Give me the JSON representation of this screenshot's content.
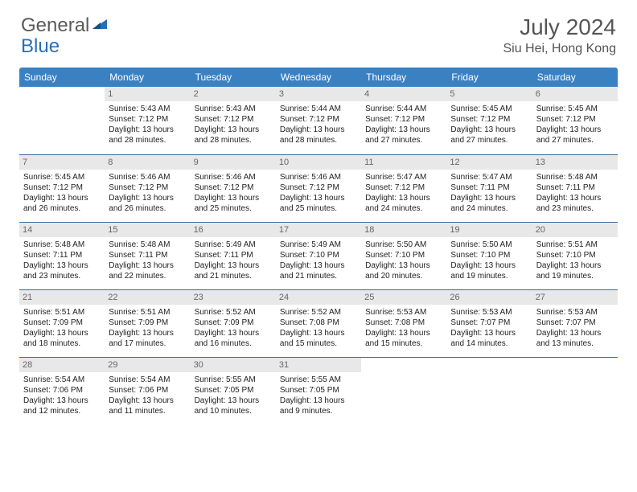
{
  "logo": {
    "part1": "General",
    "part2": "Blue"
  },
  "title": {
    "month": "July 2024",
    "location": "Siu Hei, Hong Kong"
  },
  "colors": {
    "header_bg": "#3a81c4",
    "header_text": "#ffffff",
    "daynum_bg": "#e8e8e8",
    "border": "#3a6a9a",
    "logo_blue": "#2a6fb5"
  },
  "weekdays": [
    "Sunday",
    "Monday",
    "Tuesday",
    "Wednesday",
    "Thursday",
    "Friday",
    "Saturday"
  ],
  "weeks": [
    [
      {
        "blank": true
      },
      {
        "day": "1",
        "sunrise": "Sunrise: 5:43 AM",
        "sunset": "Sunset: 7:12 PM",
        "daylight": "Daylight: 13 hours and 28 minutes."
      },
      {
        "day": "2",
        "sunrise": "Sunrise: 5:43 AM",
        "sunset": "Sunset: 7:12 PM",
        "daylight": "Daylight: 13 hours and 28 minutes."
      },
      {
        "day": "3",
        "sunrise": "Sunrise: 5:44 AM",
        "sunset": "Sunset: 7:12 PM",
        "daylight": "Daylight: 13 hours and 28 minutes."
      },
      {
        "day": "4",
        "sunrise": "Sunrise: 5:44 AM",
        "sunset": "Sunset: 7:12 PM",
        "daylight": "Daylight: 13 hours and 27 minutes."
      },
      {
        "day": "5",
        "sunrise": "Sunrise: 5:45 AM",
        "sunset": "Sunset: 7:12 PM",
        "daylight": "Daylight: 13 hours and 27 minutes."
      },
      {
        "day": "6",
        "sunrise": "Sunrise: 5:45 AM",
        "sunset": "Sunset: 7:12 PM",
        "daylight": "Daylight: 13 hours and 27 minutes."
      }
    ],
    [
      {
        "day": "7",
        "sunrise": "Sunrise: 5:45 AM",
        "sunset": "Sunset: 7:12 PM",
        "daylight": "Daylight: 13 hours and 26 minutes."
      },
      {
        "day": "8",
        "sunrise": "Sunrise: 5:46 AM",
        "sunset": "Sunset: 7:12 PM",
        "daylight": "Daylight: 13 hours and 26 minutes."
      },
      {
        "day": "9",
        "sunrise": "Sunrise: 5:46 AM",
        "sunset": "Sunset: 7:12 PM",
        "daylight": "Daylight: 13 hours and 25 minutes."
      },
      {
        "day": "10",
        "sunrise": "Sunrise: 5:46 AM",
        "sunset": "Sunset: 7:12 PM",
        "daylight": "Daylight: 13 hours and 25 minutes."
      },
      {
        "day": "11",
        "sunrise": "Sunrise: 5:47 AM",
        "sunset": "Sunset: 7:12 PM",
        "daylight": "Daylight: 13 hours and 24 minutes."
      },
      {
        "day": "12",
        "sunrise": "Sunrise: 5:47 AM",
        "sunset": "Sunset: 7:11 PM",
        "daylight": "Daylight: 13 hours and 24 minutes."
      },
      {
        "day": "13",
        "sunrise": "Sunrise: 5:48 AM",
        "sunset": "Sunset: 7:11 PM",
        "daylight": "Daylight: 13 hours and 23 minutes."
      }
    ],
    [
      {
        "day": "14",
        "sunrise": "Sunrise: 5:48 AM",
        "sunset": "Sunset: 7:11 PM",
        "daylight": "Daylight: 13 hours and 23 minutes."
      },
      {
        "day": "15",
        "sunrise": "Sunrise: 5:48 AM",
        "sunset": "Sunset: 7:11 PM",
        "daylight": "Daylight: 13 hours and 22 minutes."
      },
      {
        "day": "16",
        "sunrise": "Sunrise: 5:49 AM",
        "sunset": "Sunset: 7:11 PM",
        "daylight": "Daylight: 13 hours and 21 minutes."
      },
      {
        "day": "17",
        "sunrise": "Sunrise: 5:49 AM",
        "sunset": "Sunset: 7:10 PM",
        "daylight": "Daylight: 13 hours and 21 minutes."
      },
      {
        "day": "18",
        "sunrise": "Sunrise: 5:50 AM",
        "sunset": "Sunset: 7:10 PM",
        "daylight": "Daylight: 13 hours and 20 minutes."
      },
      {
        "day": "19",
        "sunrise": "Sunrise: 5:50 AM",
        "sunset": "Sunset: 7:10 PM",
        "daylight": "Daylight: 13 hours and 19 minutes."
      },
      {
        "day": "20",
        "sunrise": "Sunrise: 5:51 AM",
        "sunset": "Sunset: 7:10 PM",
        "daylight": "Daylight: 13 hours and 19 minutes."
      }
    ],
    [
      {
        "day": "21",
        "sunrise": "Sunrise: 5:51 AM",
        "sunset": "Sunset: 7:09 PM",
        "daylight": "Daylight: 13 hours and 18 minutes."
      },
      {
        "day": "22",
        "sunrise": "Sunrise: 5:51 AM",
        "sunset": "Sunset: 7:09 PM",
        "daylight": "Daylight: 13 hours and 17 minutes."
      },
      {
        "day": "23",
        "sunrise": "Sunrise: 5:52 AM",
        "sunset": "Sunset: 7:09 PM",
        "daylight": "Daylight: 13 hours and 16 minutes."
      },
      {
        "day": "24",
        "sunrise": "Sunrise: 5:52 AM",
        "sunset": "Sunset: 7:08 PM",
        "daylight": "Daylight: 13 hours and 15 minutes."
      },
      {
        "day": "25",
        "sunrise": "Sunrise: 5:53 AM",
        "sunset": "Sunset: 7:08 PM",
        "daylight": "Daylight: 13 hours and 15 minutes."
      },
      {
        "day": "26",
        "sunrise": "Sunrise: 5:53 AM",
        "sunset": "Sunset: 7:07 PM",
        "daylight": "Daylight: 13 hours and 14 minutes."
      },
      {
        "day": "27",
        "sunrise": "Sunrise: 5:53 AM",
        "sunset": "Sunset: 7:07 PM",
        "daylight": "Daylight: 13 hours and 13 minutes."
      }
    ],
    [
      {
        "day": "28",
        "sunrise": "Sunrise: 5:54 AM",
        "sunset": "Sunset: 7:06 PM",
        "daylight": "Daylight: 13 hours and 12 minutes."
      },
      {
        "day": "29",
        "sunrise": "Sunrise: 5:54 AM",
        "sunset": "Sunset: 7:06 PM",
        "daylight": "Daylight: 13 hours and 11 minutes."
      },
      {
        "day": "30",
        "sunrise": "Sunrise: 5:55 AM",
        "sunset": "Sunset: 7:05 PM",
        "daylight": "Daylight: 13 hours and 10 minutes."
      },
      {
        "day": "31",
        "sunrise": "Sunrise: 5:55 AM",
        "sunset": "Sunset: 7:05 PM",
        "daylight": "Daylight: 13 hours and 9 minutes."
      },
      {
        "blank": true
      },
      {
        "blank": true
      },
      {
        "blank": true
      }
    ]
  ]
}
